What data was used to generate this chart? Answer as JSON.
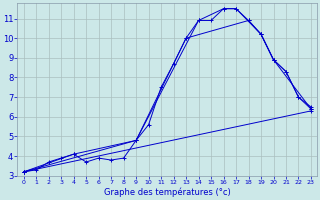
{
  "background_color": "#cce8e8",
  "grid_color": "#aabfbf",
  "line_color": "#0000cc",
  "xlabel": "Graphe des températures (°c)",
  "xlim": [
    -0.5,
    23.5
  ],
  "ylim": [
    3,
    11.8
  ],
  "yticks": [
    3,
    4,
    5,
    6,
    7,
    8,
    9,
    10,
    11
  ],
  "xticks": [
    0,
    1,
    2,
    3,
    4,
    5,
    6,
    7,
    8,
    9,
    10,
    11,
    12,
    13,
    14,
    15,
    16,
    17,
    18,
    19,
    20,
    21,
    22,
    23
  ],
  "series": [
    {
      "x": [
        0,
        1,
        2,
        3,
        4,
        5,
        6,
        7,
        8,
        9,
        10,
        11,
        12,
        13,
        14,
        15,
        16,
        17,
        18,
        19,
        20,
        21,
        22,
        23
      ],
      "y": [
        3.2,
        3.3,
        3.7,
        3.9,
        4.1,
        3.7,
        3.9,
        3.8,
        3.9,
        4.8,
        5.6,
        7.5,
        8.7,
        10.0,
        10.9,
        10.9,
        11.5,
        11.5,
        10.9,
        10.2,
        8.9,
        8.3,
        7.0,
        6.4
      ]
    },
    {
      "x": [
        0,
        4,
        9,
        14,
        16,
        17,
        19,
        20,
        23
      ],
      "y": [
        3.2,
        4.1,
        4.8,
        10.9,
        11.5,
        11.5,
        10.2,
        8.9,
        6.4
      ]
    },
    {
      "x": [
        0,
        9,
        13,
        18,
        19,
        20,
        21,
        22,
        23
      ],
      "y": [
        3.2,
        4.8,
        10.0,
        10.9,
        10.2,
        8.9,
        8.3,
        7.0,
        6.5
      ]
    },
    {
      "x": [
        0,
        23
      ],
      "y": [
        3.2,
        6.3
      ]
    }
  ]
}
